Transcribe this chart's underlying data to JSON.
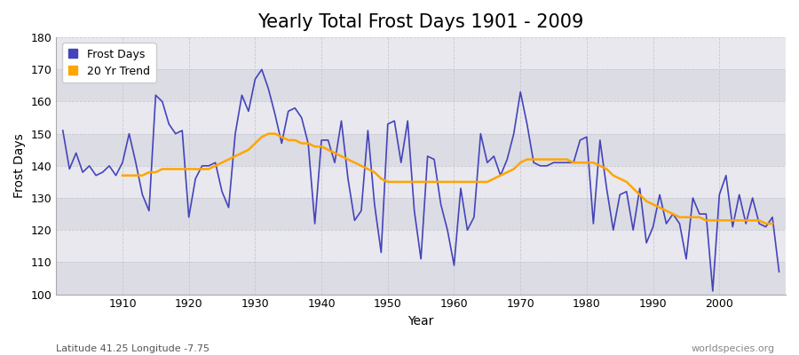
{
  "title": "Yearly Total Frost Days 1901 - 2009",
  "xlabel": "Year",
  "ylabel": "Frost Days",
  "footnote_left": "Latitude 41.25 Longitude -7.75",
  "footnote_right": "worldspecies.org",
  "years": [
    1901,
    1902,
    1903,
    1904,
    1905,
    1906,
    1907,
    1908,
    1909,
    1910,
    1911,
    1912,
    1913,
    1914,
    1915,
    1916,
    1917,
    1918,
    1919,
    1920,
    1921,
    1922,
    1923,
    1924,
    1925,
    1926,
    1927,
    1928,
    1929,
    1930,
    1931,
    1932,
    1933,
    1934,
    1935,
    1936,
    1937,
    1938,
    1939,
    1940,
    1941,
    1942,
    1943,
    1944,
    1945,
    1946,
    1947,
    1948,
    1949,
    1950,
    1951,
    1952,
    1953,
    1954,
    1955,
    1956,
    1957,
    1958,
    1959,
    1960,
    1961,
    1962,
    1963,
    1964,
    1965,
    1966,
    1967,
    1968,
    1969,
    1970,
    1971,
    1972,
    1973,
    1974,
    1975,
    1976,
    1977,
    1978,
    1979,
    1980,
    1981,
    1982,
    1983,
    1984,
    1985,
    1986,
    1987,
    1988,
    1989,
    1990,
    1991,
    1992,
    1993,
    1994,
    1995,
    1996,
    1997,
    1998,
    1999,
    2000,
    2001,
    2002,
    2003,
    2004,
    2005,
    2006,
    2007,
    2008,
    2009
  ],
  "frost_days": [
    151,
    139,
    144,
    138,
    140,
    137,
    138,
    140,
    137,
    141,
    150,
    141,
    131,
    126,
    162,
    160,
    153,
    150,
    151,
    124,
    136,
    140,
    140,
    141,
    132,
    127,
    150,
    162,
    157,
    167,
    170,
    164,
    156,
    147,
    157,
    158,
    155,
    147,
    122,
    148,
    148,
    141,
    154,
    136,
    123,
    126,
    151,
    128,
    113,
    153,
    154,
    141,
    154,
    126,
    111,
    143,
    142,
    128,
    120,
    109,
    133,
    120,
    124,
    150,
    141,
    143,
    137,
    142,
    150,
    163,
    153,
    141,
    140,
    140,
    141,
    141,
    141,
    141,
    148,
    149,
    122,
    148,
    133,
    120,
    131,
    132,
    120,
    133,
    116,
    121,
    131,
    122,
    125,
    122,
    111,
    130,
    125,
    125,
    101,
    131,
    137,
    121,
    131,
    122,
    130,
    122,
    121,
    124,
    107
  ],
  "trend_values": [
    null,
    null,
    null,
    null,
    null,
    null,
    null,
    null,
    null,
    137,
    137,
    137,
    137,
    138,
    138,
    139,
    139,
    139,
    139,
    139,
    139,
    139,
    139,
    140,
    141,
    142,
    143,
    144,
    145,
    147,
    149,
    150,
    150,
    149,
    148,
    148,
    147,
    147,
    146,
    146,
    145,
    144,
    143,
    142,
    141,
    140,
    139,
    138,
    136,
    135,
    135,
    135,
    135,
    135,
    135,
    135,
    135,
    135,
    135,
    135,
    135,
    135,
    135,
    135,
    135,
    136,
    137,
    138,
    139,
    141,
    142,
    142,
    142,
    142,
    142,
    142,
    142,
    141,
    141,
    141,
    141,
    140,
    139,
    137,
    136,
    135,
    133,
    131,
    129,
    128,
    127,
    126,
    125,
    124,
    124,
    124,
    124,
    123,
    123,
    123,
    123,
    123,
    123,
    123,
    123,
    123,
    122,
    122,
    null
  ],
  "frost_color": "#4444bb",
  "trend_color": "#ffa500",
  "bg_color": "#ffffff",
  "plot_bg_color": "#e8e8ee",
  "stripe_color": "#dcdce4",
  "grid_color": "#c8c8d0",
  "ylim": [
    100,
    180
  ],
  "yticks": [
    100,
    110,
    120,
    130,
    140,
    150,
    160,
    170,
    180
  ],
  "xlim": [
    1900,
    2010
  ],
  "xticks": [
    1910,
    1920,
    1930,
    1940,
    1950,
    1960,
    1970,
    1980,
    1990,
    2000
  ],
  "title_fontsize": 15,
  "label_fontsize": 10,
  "tick_fontsize": 9,
  "legend_fontsize": 9,
  "footnote_fontsize": 8
}
